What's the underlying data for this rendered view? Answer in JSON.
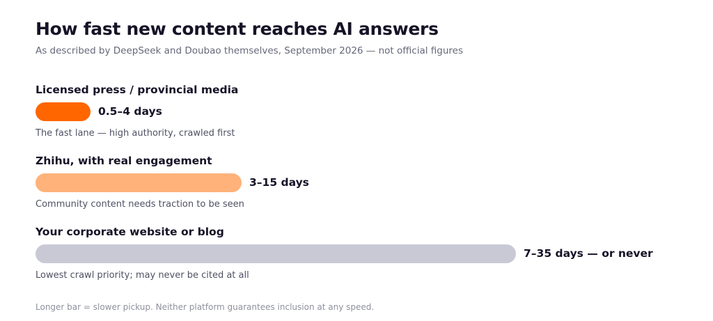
{
  "chart_data": {
    "type": "bar",
    "orientation": "horizontal",
    "title": "How fast new content reaches AI answers",
    "subtitle": "As described by DeepSeek and Doubao themselves, September 2026 — not official figures",
    "categories": [
      "Licensed press / provincial media",
      "Zhihu, with real engagement",
      "Your corporate website or blog"
    ],
    "ranges": [
      [
        0.5,
        4
      ],
      [
        3,
        15
      ],
      [
        7,
        35
      ]
    ],
    "value_labels": [
      "0.5–4 days",
      "3–15 days",
      "7–35 days — or never"
    ],
    "notes": [
      "The fast lane — high authority, crawled first",
      "Community content needs traction to be seen",
      "Lowest crawl priority; may never be cited at all"
    ],
    "colors": [
      "#ff6600",
      "#ffb27a",
      "#c9c9d6"
    ],
    "footnote": "Longer bar = slower pickup. Neither platform guarantees inclusion at any speed.",
    "xlim": [
      0,
      35
    ],
    "grid": false,
    "legend": "none"
  }
}
